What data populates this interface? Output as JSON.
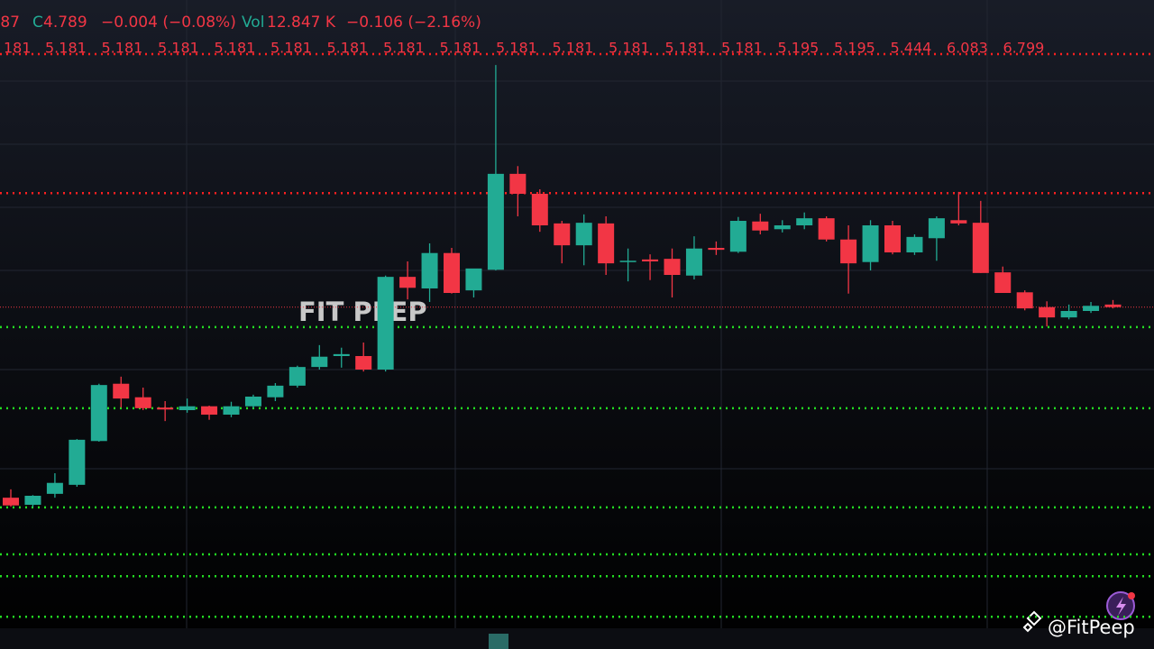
{
  "header": {
    "open_tail": "87",
    "close_label": "C",
    "close": "4.789",
    "change": "−0.004 (−0.08%)",
    "vol_label": "Vol",
    "volume": "12.847 K",
    "vol_change": "−0.106 (−2.16%)"
  },
  "top_labels": [
    "181",
    "5.181",
    "5.181",
    "5.181",
    "5.181",
    "5.181",
    "5.181",
    "5.181",
    "5.181",
    "5.181",
    "5.181",
    "5.181",
    "5.181",
    "5.181",
    "5.195",
    "5.195",
    "5.444",
    "6.083",
    "6.799"
  ],
  "watermark": "FIT PEEP",
  "handle": "@FitPeep",
  "chart_data": {
    "type": "candlestick",
    "open": [
      4.493,
      4.482,
      4.499,
      4.513,
      4.581,
      4.67,
      4.649,
      4.633,
      4.629,
      4.635,
      4.622,
      4.635,
      4.649,
      4.667,
      4.696,
      4.713,
      4.713,
      4.692,
      4.836,
      4.818,
      4.873,
      4.815,
      4.847,
      4.996,
      4.965,
      4.919,
      4.885,
      4.919,
      4.859,
      4.863,
      4.864,
      4.838,
      4.881,
      4.875,
      4.922,
      4.91,
      4.916,
      4.927,
      4.894,
      4.859,
      4.916,
      4.874,
      4.896,
      4.924,
      4.92,
      4.843,
      4.812,
      4.789,
      4.773,
      4.783,
      4.793
    ],
    "high": [
      4.506,
      4.497,
      4.531,
      4.584,
      4.67,
      4.681,
      4.664,
      4.643,
      4.647,
      4.636,
      4.642,
      4.653,
      4.671,
      4.698,
      4.73,
      4.726,
      4.734,
      4.838,
      4.86,
      4.888,
      4.881,
      4.846,
      5.165,
      5.008,
      4.972,
      4.923,
      4.933,
      4.93,
      4.88,
      4.871,
      4.88,
      4.899,
      4.891,
      4.929,
      4.934,
      4.924,
      4.936,
      4.93,
      4.916,
      4.924,
      4.923,
      4.902,
      4.93,
      4.968,
      4.954,
      4.852,
      4.815,
      4.798,
      4.793,
      4.797,
      4.8
    ],
    "low": [
      4.479,
      4.478,
      4.493,
      4.51,
      4.58,
      4.633,
      4.629,
      4.612,
      4.625,
      4.614,
      4.618,
      4.632,
      4.643,
      4.664,
      4.692,
      4.695,
      4.689,
      4.689,
      4.801,
      4.797,
      4.81,
      4.804,
      4.846,
      4.93,
      4.906,
      4.857,
      4.854,
      4.839,
      4.829,
      4.831,
      4.804,
      4.832,
      4.87,
      4.873,
      4.902,
      4.905,
      4.91,
      4.891,
      4.81,
      4.846,
      4.871,
      4.87,
      4.861,
      4.916,
      4.842,
      4.811,
      4.784,
      4.759,
      4.77,
      4.78,
      4.787
    ],
    "close": [
      4.481,
      4.496,
      4.516,
      4.583,
      4.668,
      4.647,
      4.632,
      4.63,
      4.635,
      4.622,
      4.635,
      4.65,
      4.667,
      4.696,
      4.712,
      4.716,
      4.692,
      4.836,
      4.819,
      4.873,
      4.811,
      4.849,
      4.996,
      4.965,
      4.916,
      4.885,
      4.92,
      4.857,
      4.861,
      4.86,
      4.839,
      4.88,
      4.878,
      4.923,
      4.908,
      4.916,
      4.927,
      4.894,
      4.857,
      4.916,
      4.874,
      4.898,
      4.927,
      4.919,
      4.842,
      4.811,
      4.787,
      4.773,
      4.783,
      4.791,
      4.789
    ],
    "up_color": "#22ab94",
    "down_color": "#f23645",
    "ylim": [
      4.286,
      5.266
    ],
    "resistance_levels": [
      5.182,
      4.966
    ],
    "resistance_color": "#ff2020",
    "support_levels": [
      4.758,
      4.632,
      4.478,
      4.405,
      4.371,
      4.308
    ],
    "support_color": "#22dd22"
  }
}
